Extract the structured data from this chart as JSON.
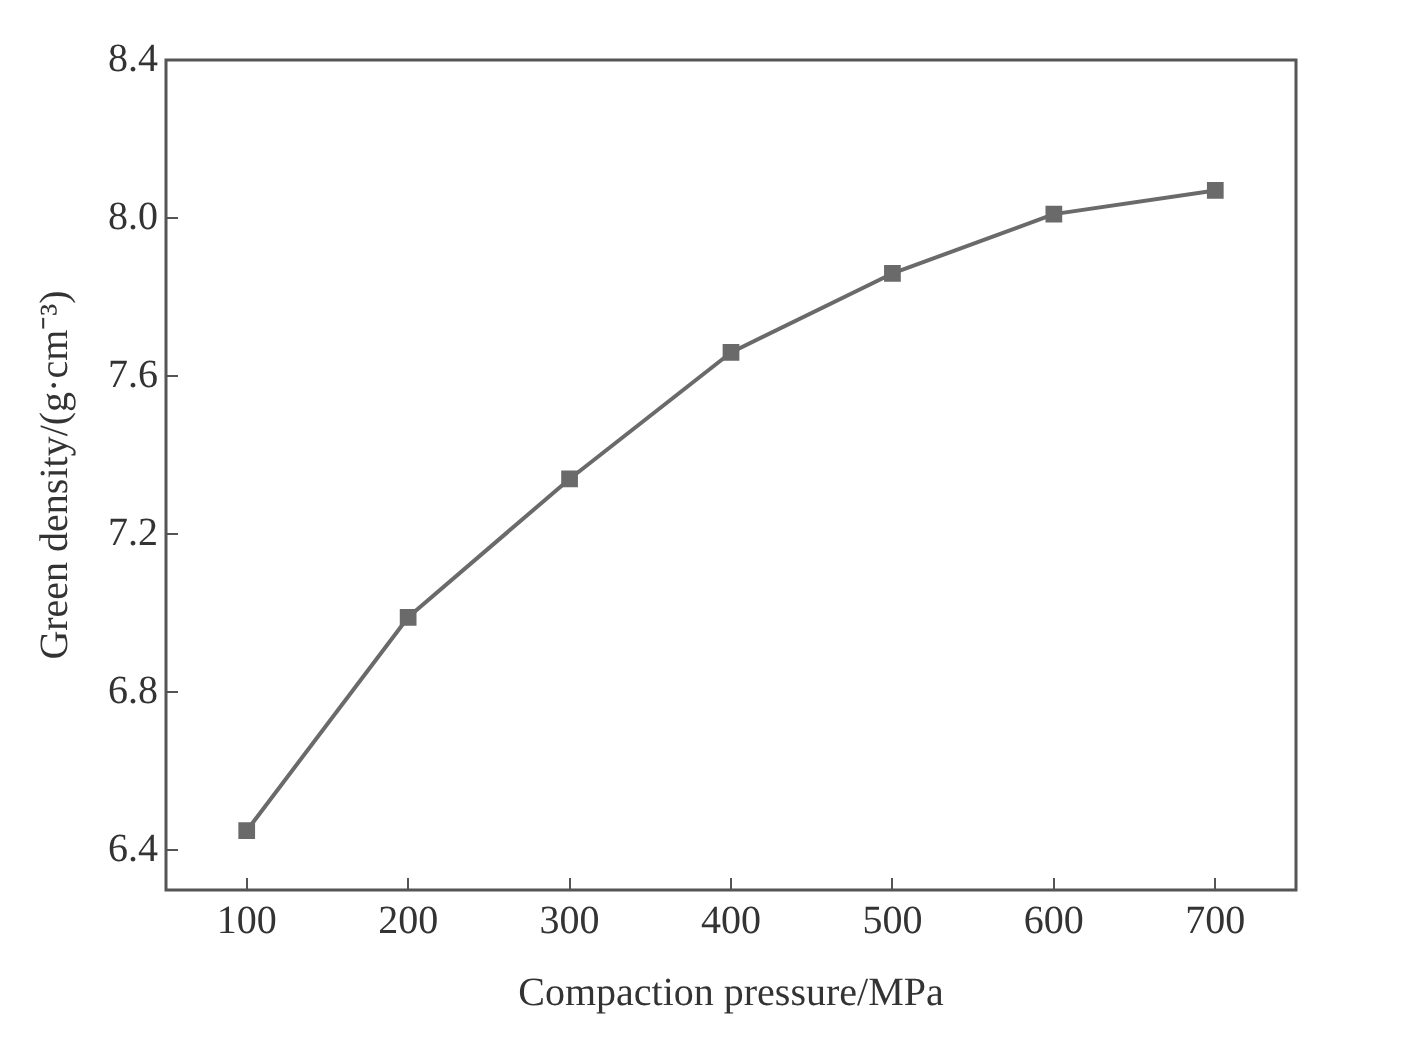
{
  "chart_data": {
    "type": "line",
    "xlabel": "Compaction pressure/MPa",
    "ylabel": "Green density/(g·cm⁻³)",
    "x": [
      100,
      200,
      300,
      400,
      500,
      600,
      700
    ],
    "series": [
      {
        "color": "#6a6a6a",
        "values": [
          6.45,
          6.99,
          7.34,
          7.66,
          7.86,
          8.01,
          8.07
        ]
      }
    ],
    "xlim": [
      50,
      750
    ],
    "xticks": [
      100,
      200,
      300,
      400,
      500,
      600,
      700
    ],
    "ylim": [
      6.3,
      8.4
    ],
    "yticks": [
      6.4,
      6.8,
      7.2,
      7.6,
      {
        "value": 8,
        "label": "8.0"
      },
      8.4
    ],
    "grid": false,
    "legend": false,
    "marker": "square",
    "line_style": "solid"
  }
}
